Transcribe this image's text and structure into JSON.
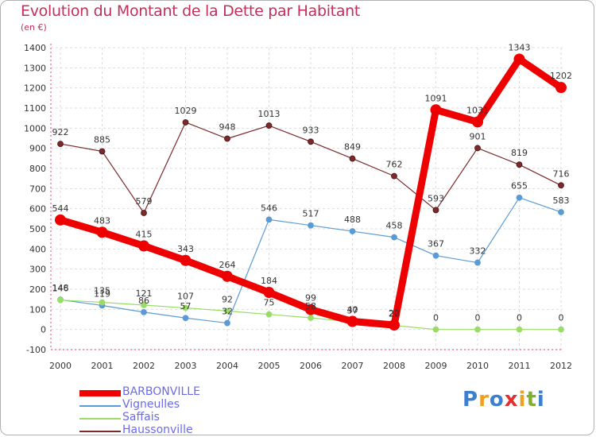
{
  "chart_data": {
    "type": "line",
    "title": "Evolution du Montant de la Dette par Habitant",
    "ylabel": "(en €)",
    "xlabel": "",
    "ylim": [
      -100,
      1400
    ],
    "yticks": [
      -100,
      0,
      100,
      200,
      300,
      400,
      500,
      600,
      700,
      800,
      900,
      1000,
      1100,
      1200,
      1300,
      1400
    ],
    "categories": [
      "2000",
      "2001",
      "2002",
      "2003",
      "2004",
      "2005",
      "2006",
      "2007",
      "2008",
      "2009",
      "2010",
      "2011",
      "2012"
    ],
    "grid": true,
    "series": [
      {
        "name": "BARBONVILLE",
        "color": "#ee0000",
        "values": [
          544,
          483,
          415,
          343,
          264,
          184,
          99,
          40,
          22,
          1091,
          1031,
          1343,
          1202
        ],
        "labels": [
          "544",
          "483",
          "415",
          "343",
          "264",
          "184",
          "99",
          "40",
          "22",
          "1091",
          "1031",
          "1343",
          "1202"
        ]
      },
      {
        "name": "Vigneulles",
        "color": "#5b9bd5",
        "values": [
          148,
          119,
          86,
          57,
          32,
          546,
          517,
          488,
          458,
          367,
          332,
          655,
          583
        ],
        "labels": [
          "148",
          "119",
          "86",
          "57",
          "32",
          "546",
          "517",
          "488",
          "458",
          "367",
          "332",
          "655",
          "583"
        ]
      },
      {
        "name": "Saffais",
        "color": "#99dd66",
        "values": [
          146,
          135,
          121,
          107,
          92,
          75,
          58,
          37,
          20,
          0,
          0,
          0,
          0
        ],
        "labels": [
          "146",
          "135",
          "121",
          "107",
          "92",
          "75",
          "58",
          "37",
          "20",
          "0",
          "0",
          "0",
          "0"
        ]
      },
      {
        "name": "Haussonville",
        "color": "#7a2a2a",
        "values": [
          922,
          885,
          579,
          1029,
          948,
          1013,
          933,
          849,
          762,
          593,
          901,
          819,
          716
        ],
        "labels": [
          "922",
          "885",
          "579",
          "1029",
          "948",
          "1013",
          "933",
          "849",
          "762",
          "593",
          "901",
          "819",
          "716"
        ]
      }
    ]
  },
  "legend": {
    "items": [
      {
        "label": "BARBONVILLE",
        "color": "#ee0000"
      },
      {
        "label": "Vigneulles",
        "color": "#5b9bd5"
      },
      {
        "label": "Saffais",
        "color": "#99dd66"
      },
      {
        "label": "Haussonville",
        "color": "#7a2a2a"
      }
    ]
  },
  "logo": {
    "letters": [
      "P",
      "r",
      "o",
      "x",
      "i",
      "t",
      "i"
    ],
    "colors": [
      "#3a7fd0",
      "#f0a020",
      "#3a7fd0",
      "#e03030",
      "#f0a020",
      "#80b030",
      "#3a7fd0"
    ]
  }
}
